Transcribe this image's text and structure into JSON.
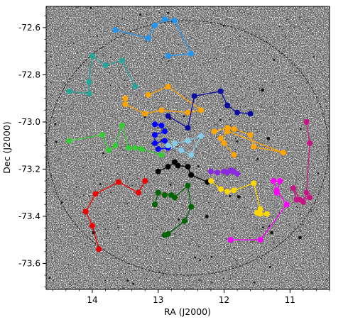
{
  "chart_data": {
    "type": "scatter",
    "title": "",
    "xlabel": "RA (J2000)",
    "ylabel": "Dec (J2000)",
    "xlim": [
      14.7,
      10.4
    ],
    "ylim": [
      -73.71,
      -72.51
    ],
    "x_ticks": [
      14,
      13,
      12,
      11
    ],
    "y_ticks": [
      -72.6,
      -72.8,
      -73.0,
      -73.2,
      -73.4,
      -73.6
    ],
    "grid": false,
    "legend": "none",
    "background": "greyscale star-field image",
    "field_circle": {
      "center": [
        12.55,
        -73.11
      ],
      "ra_radius": 2.13,
      "dec_radius": 0.54,
      "style": "dashed",
      "color": "#000000"
    },
    "series": [
      {
        "color": "#2196f3",
        "x": [
          13.65,
          13.15,
          13.05,
          12.9,
          12.75,
          12.5,
          12.85
        ],
        "y": [
          -72.61,
          -72.645,
          -72.59,
          -72.565,
          -72.57,
          -72.71,
          -72.72
        ]
      },
      {
        "color": "#26a69a",
        "x": [
          14.35,
          14.05,
          14.05,
          14.0,
          13.8,
          13.55,
          13.35
        ],
        "y": [
          -72.87,
          -72.88,
          -72.83,
          -72.72,
          -72.76,
          -72.74,
          -72.85
        ]
      },
      {
        "color": "#ffa500",
        "x": [
          13.5,
          13.5,
          13.2,
          12.95,
          12.55,
          12.35,
          12.85,
          13.15
        ],
        "y": [
          -72.9,
          -72.925,
          -72.965,
          -72.95,
          -72.96,
          -72.95,
          -72.85,
          -72.885
        ]
      },
      {
        "color": "#0a0aa0",
        "x": [
          12.85,
          12.55,
          12.45,
          12.05,
          11.95,
          11.8,
          11.6
        ],
        "y": [
          -72.975,
          -73.025,
          -72.89,
          -72.87,
          -72.93,
          -72.96,
          -72.965
        ]
      },
      {
        "color": "#0000ff",
        "x": [
          13.05,
          12.95,
          12.9,
          13.05,
          13.05,
          12.9,
          12.85,
          13.0
        ],
        "y": [
          -73.01,
          -73.015,
          -73.04,
          -73.055,
          -73.09,
          -73.08,
          -73.11,
          -73.115
        ]
      },
      {
        "color": "#87ceeb",
        "x": [
          12.75,
          12.55,
          12.35,
          12.5,
          12.65,
          12.85
        ],
        "y": [
          -73.09,
          -73.08,
          -73.06,
          -73.14,
          -73.12,
          -73.1
        ]
      },
      {
        "color": "#ffa500",
        "x": [
          12.15,
          11.95,
          11.85,
          11.6,
          11.55,
          11.1,
          11.95,
          12.05,
          12.0,
          11.85
        ],
        "y": [
          -73.04,
          -73.025,
          -73.03,
          -73.055,
          -73.105,
          -73.13,
          -73.04,
          -73.07,
          -73.09,
          -73.14
        ]
      },
      {
        "color": "#32cd32",
        "x": [
          14.35,
          13.85,
          13.75,
          13.65,
          13.55,
          13.45,
          13.35,
          13.25,
          12.95
        ],
        "y": [
          -73.08,
          -73.055,
          -73.12,
          -73.1,
          -73.015,
          -73.11,
          -73.11,
          -73.115,
          -73.14
        ]
      },
      {
        "color": "#000000",
        "x": [
          13.0,
          12.85,
          12.75,
          12.7,
          12.55,
          12.5,
          12.25
        ],
        "y": [
          -73.21,
          -73.19,
          -73.17,
          -73.185,
          -73.19,
          -73.225,
          -73.255
        ]
      },
      {
        "color": "#8a2be2",
        "x": [
          12.2,
          12.1,
          12.0,
          11.9,
          11.85,
          11.95,
          11.8
        ],
        "y": [
          -73.21,
          -73.215,
          -73.21,
          -73.205,
          -73.21,
          -73.215,
          -73.22
        ]
      },
      {
        "color": "#ffd700",
        "x": [
          12.2,
          12.05,
          11.95,
          11.85,
          11.55,
          11.45,
          11.45,
          11.35,
          11.5
        ],
        "y": [
          -73.25,
          -73.285,
          -73.295,
          -73.29,
          -73.26,
          -73.37,
          -73.39,
          -73.39,
          -73.385
        ]
      },
      {
        "color": "#ee0000",
        "x": [
          13.9,
          14.0,
          14.1,
          13.95,
          13.6,
          13.3,
          13.2
        ],
        "y": [
          -73.54,
          -73.44,
          -73.38,
          -73.305,
          -73.255,
          -73.3,
          -73.25
        ]
      },
      {
        "color": "#006400",
        "x": [
          12.9,
          12.85,
          12.6,
          12.5,
          12.55,
          12.75,
          12.8,
          12.9,
          13.0,
          13.05
        ],
        "y": [
          -73.48,
          -73.475,
          -73.42,
          -73.36,
          -73.27,
          -73.32,
          -73.31,
          -73.31,
          -73.3,
          -73.35
        ]
      },
      {
        "color": "#ff00ff",
        "x": [
          11.9,
          11.45,
          11.05,
          11.2,
          11.25,
          11.15,
          11.2
        ],
        "y": [
          -73.5,
          -73.5,
          -73.35,
          -73.29,
          -73.25,
          -73.25,
          -73.3
        ]
      },
      {
        "color": "#c71585",
        "x": [
          10.75,
          10.7,
          10.75,
          10.8,
          10.9,
          10.95,
          10.85,
          10.7
        ],
        "y": [
          -73.0,
          -73.09,
          -73.3,
          -73.34,
          -73.33,
          -73.28,
          -73.33,
          -73.32
        ]
      }
    ]
  }
}
